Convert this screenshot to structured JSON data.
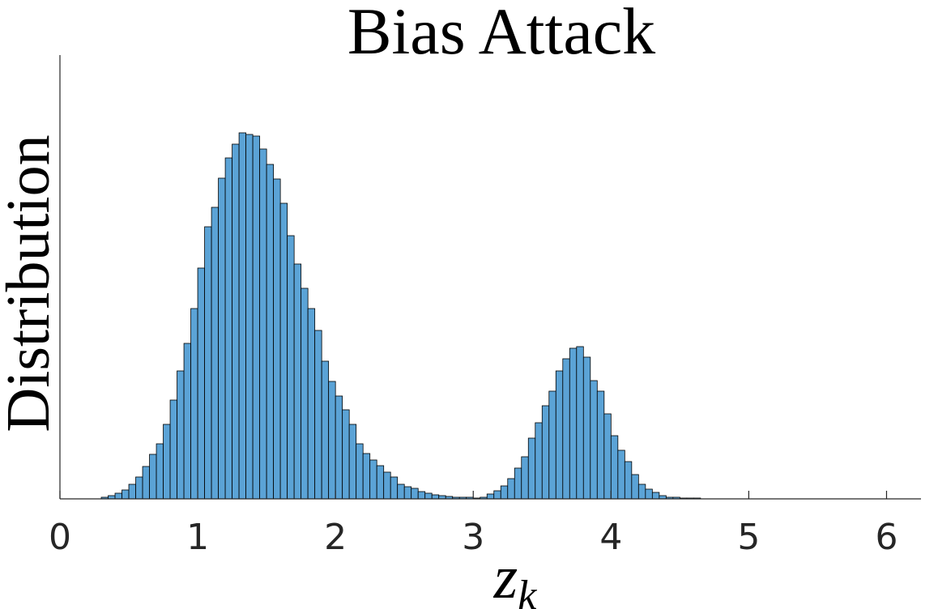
{
  "chart_data": {
    "type": "histogram",
    "title": "Bias Attack",
    "ylabel": "Distribution",
    "xlabel": {
      "base": "z",
      "subscript": "k"
    },
    "bins": [
      0.3,
      0.35,
      0.4,
      0.45,
      0.5,
      0.55,
      0.6,
      0.65,
      0.7,
      0.75,
      0.8,
      0.85,
      0.9,
      0.95,
      1.0,
      1.05,
      1.1,
      1.15,
      1.2,
      1.25,
      1.3,
      1.35,
      1.4,
      1.45,
      1.5,
      1.55,
      1.6,
      1.65,
      1.7,
      1.75,
      1.8,
      1.85,
      1.9,
      1.95,
      2.0,
      2.05,
      2.1,
      2.15,
      2.2,
      2.25,
      2.3,
      2.35,
      2.4,
      2.45,
      2.5,
      2.55,
      2.6,
      2.65,
      2.7,
      2.75,
      2.8,
      2.85,
      2.9,
      2.95,
      3.0,
      3.05,
      3.1,
      3.15,
      3.2,
      3.25,
      3.3,
      3.35,
      3.4,
      3.45,
      3.5,
      3.55,
      3.6,
      3.65,
      3.7,
      3.75,
      3.8,
      3.85,
      3.9,
      3.95,
      4.0,
      4.05,
      4.1,
      4.15,
      4.2,
      4.25,
      4.3,
      4.35,
      4.4,
      4.45,
      4.5,
      4.55,
      4.6,
      4.65
    ],
    "values": [
      2,
      4,
      7,
      11,
      18,
      27,
      40,
      55,
      68,
      92,
      122,
      158,
      192,
      235,
      285,
      336,
      360,
      396,
      421,
      438,
      452,
      450,
      448,
      432,
      413,
      395,
      365,
      325,
      290,
      260,
      235,
      208,
      170,
      145,
      127,
      110,
      92,
      68,
      56,
      48,
      41,
      33,
      27,
      18,
      15,
      13,
      9,
      7,
      5,
      4,
      3,
      2,
      2,
      2,
      1,
      2,
      6,
      10,
      16,
      25,
      38,
      52,
      75,
      94,
      115,
      133,
      158,
      173,
      186,
      188,
      175,
      146,
      133,
      105,
      78,
      60,
      46,
      30,
      18,
      12,
      8,
      4,
      2,
      2,
      1,
      1,
      1
    ],
    "color": "#5ba3d6",
    "xlim": [
      0,
      6.25
    ],
    "xticks": [
      0,
      1,
      2,
      3,
      4,
      5,
      6
    ],
    "ylim": [
      0,
      548
    ]
  }
}
